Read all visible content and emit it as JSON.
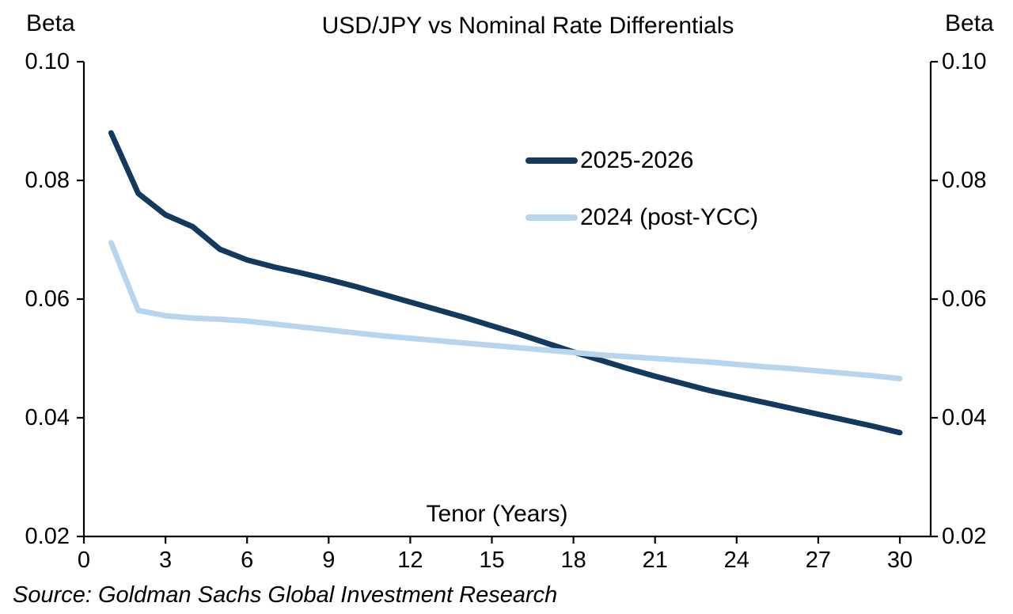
{
  "header": {
    "title": "USD/JPY vs Nominal Rate Differentials",
    "y_axis_label_left": "Beta",
    "y_axis_label_right": "Beta"
  },
  "footer": {
    "source": "Source: Goldman Sachs Global Investment Research"
  },
  "colors": {
    "axis": "#000000",
    "text": "#000000",
    "series_dark": "#14395E",
    "series_light": "#B8D5EE",
    "background": "#FFFFFF"
  },
  "chart_data": {
    "type": "line",
    "title": "USD/JPY vs Nominal Rate Differentials",
    "xlabel": "Tenor (Years)",
    "ylabel": "Beta",
    "ylabel_right": "Beta",
    "xlim": [
      0,
      31.1
    ],
    "ylim": [
      0.02,
      0.1
    ],
    "x_ticks": [
      0,
      3,
      6,
      9,
      12,
      15,
      18,
      21,
      24,
      27,
      30
    ],
    "y_ticks": [
      "0.02",
      "0.04",
      "0.06",
      "0.08",
      "0.10"
    ],
    "grid": false,
    "legend_position": "upper center-right, inside plot",
    "x": [
      1,
      2,
      3,
      4,
      5,
      6,
      7,
      8,
      9,
      10,
      11,
      12,
      13,
      14,
      15,
      16,
      17,
      18,
      19,
      20,
      21,
      22,
      23,
      24,
      25,
      26,
      27,
      28,
      29,
      30
    ],
    "series": [
      {
        "name": "2025-2026",
        "color": "#14395E",
        "values": [
          0.088,
          0.0778,
          0.0742,
          0.0722,
          0.0684,
          0.0666,
          0.0654,
          0.0644,
          0.0633,
          0.0621,
          0.0608,
          0.0595,
          0.0582,
          0.0569,
          0.0555,
          0.0541,
          0.0526,
          0.0511,
          0.0497,
          0.0483,
          0.047,
          0.0458,
          0.0446,
          0.0436,
          0.0426,
          0.0416,
          0.0406,
          0.0396,
          0.0386,
          0.0375
        ]
      },
      {
        "name": "2024 (post-YCC)",
        "color": "#B8D5EE",
        "values": [
          0.0695,
          0.0581,
          0.0572,
          0.0568,
          0.0566,
          0.0563,
          0.0558,
          0.0553,
          0.0548,
          0.0543,
          0.0538,
          0.0534,
          0.053,
          0.0526,
          0.0522,
          0.0518,
          0.0514,
          0.051,
          0.0506,
          0.0503,
          0.05,
          0.0497,
          0.0494,
          0.049,
          0.0486,
          0.0483,
          0.0479,
          0.0475,
          0.0471,
          0.0466
        ]
      }
    ],
    "source": "Source: Goldman Sachs Global Investment Research"
  }
}
